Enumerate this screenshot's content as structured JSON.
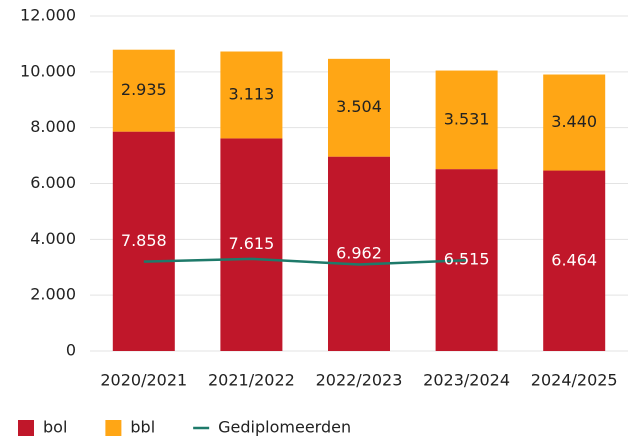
{
  "chart_data": {
    "type": "bar",
    "stacked": true,
    "categories": [
      "2020/2021",
      "2021/2022",
      "2022/2023",
      "2023/2024",
      "2024/2025"
    ],
    "series": [
      {
        "name": "bol",
        "color": "#c0172a",
        "values": [
          7858,
          7615,
          6962,
          6515,
          6464
        ],
        "value_labels": [
          "7.858",
          "7.615",
          "6.962",
          "6.515",
          "6.464"
        ]
      },
      {
        "name": "bbl",
        "color": "#ffa615",
        "values": [
          2935,
          3113,
          3504,
          3531,
          3440
        ],
        "value_labels": [
          "2.935",
          "3.113",
          "3.504",
          "3.531",
          "3.440"
        ]
      },
      {
        "name": "Gediplomeerden",
        "type": "line",
        "color": "#1e7a6a",
        "values": [
          3200,
          3300,
          3100,
          3250,
          null
        ]
      }
    ],
    "ylim": [
      0,
      12000
    ],
    "yticks": [
      0,
      {
        "value": 2000,
        "label": "2.000"
      },
      {
        "value": 4000,
        "label": "4.000"
      },
      {
        "value": 6000,
        "label": "6.000"
      },
      {
        "value": 8000,
        "label": "8.000"
      },
      {
        "value": 10000,
        "label": "10.000"
      },
      {
        "value": 12000,
        "label": "12.000"
      }
    ],
    "grid": true,
    "legend": "bottom"
  }
}
